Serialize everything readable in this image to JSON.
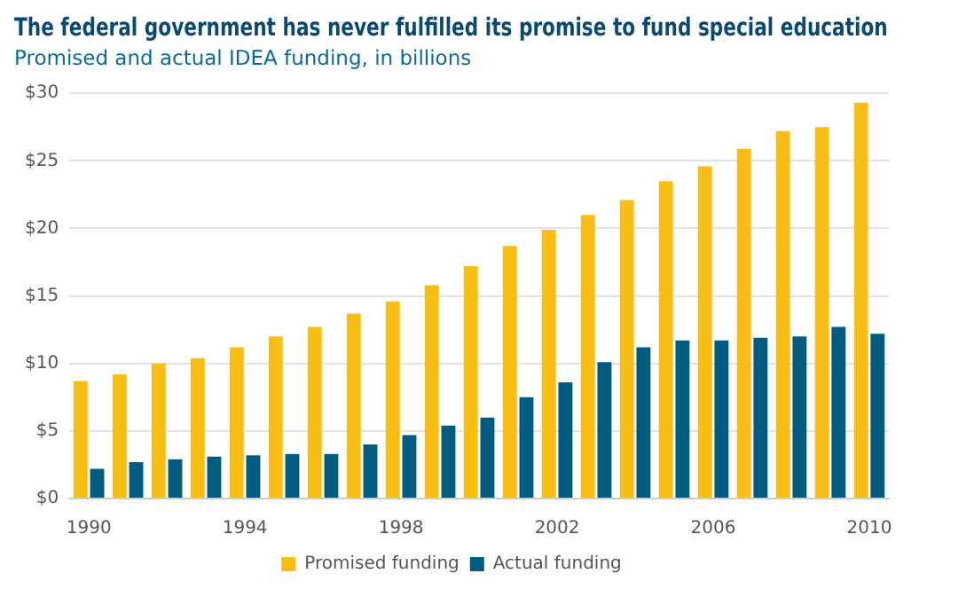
{
  "chart_data": {
    "type": "bar",
    "title": "The federal government has never fulfilled its promise to fund special education",
    "subtitle": "Promised and actual IDEA funding, in billions",
    "categories": [
      "1990",
      null,
      null,
      null,
      "1994",
      null,
      null,
      null,
      "1998",
      null,
      null,
      null,
      "2002",
      null,
      null,
      null,
      "2006",
      null,
      null,
      null,
      "2010"
    ],
    "series": [
      {
        "name": "Promised funding",
        "color": "#f9be14",
        "values": [
          8.7,
          9.2,
          10.0,
          10.4,
          11.2,
          12.0,
          12.7,
          13.7,
          14.6,
          15.8,
          17.2,
          18.7,
          19.9,
          21.0,
          22.1,
          23.5,
          24.6,
          25.9,
          27.2,
          27.5,
          29.3
        ]
      },
      {
        "name": "Actual funding",
        "color": "#005b80",
        "values": [
          2.2,
          2.7,
          2.9,
          3.1,
          3.2,
          3.3,
          3.3,
          4.0,
          4.7,
          5.4,
          6.0,
          7.5,
          8.6,
          10.1,
          11.2,
          11.7,
          11.7,
          11.9,
          12.0,
          12.7,
          12.2
        ]
      }
    ],
    "ylim": [
      0,
      30
    ],
    "yticks": [
      {
        "value": 0,
        "label": "$0"
      },
      {
        "value": 5,
        "label": "$5"
      },
      {
        "value": 10,
        "label": "$10"
      },
      {
        "value": 15,
        "label": "$15"
      },
      {
        "value": 20,
        "label": "$20"
      },
      {
        "value": 25,
        "label": "$25"
      },
      {
        "value": 30,
        "label": "$30"
      }
    ],
    "grid": "y",
    "legend": "bottom"
  }
}
